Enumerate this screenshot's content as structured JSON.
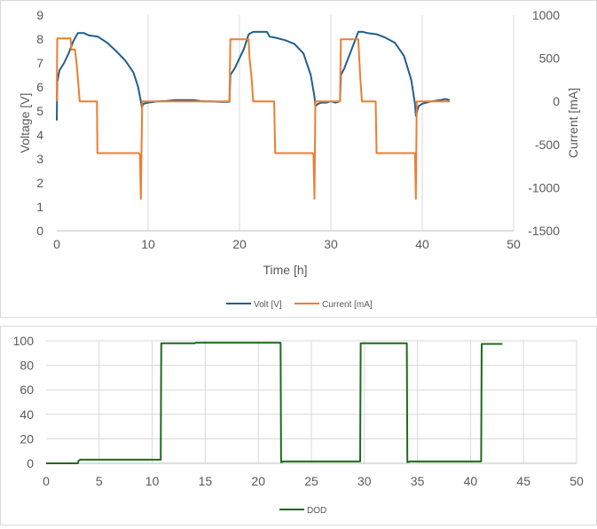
{
  "chart_data": [
    {
      "type": "line",
      "xlabel": "Time [h]",
      "ylabel": "Voltage [V]",
      "y2label": "Current [mA]",
      "xlim": [
        0,
        50
      ],
      "ylim": [
        0,
        9
      ],
      "y2lim": [
        -1500,
        1000
      ],
      "xticks": [
        "0",
        "10",
        "20",
        "30",
        "40",
        "50"
      ],
      "yticks": [
        "0",
        "1",
        "2",
        "3",
        "4",
        "5",
        "6",
        "7",
        "8",
        "9"
      ],
      "y2ticks": [
        "1000",
        "500",
        "0",
        "-500",
        "-1000",
        "-1500"
      ],
      "grid": "vertical",
      "legend": "bottom",
      "series": [
        {
          "name": "Volt [V]",
          "axis": "left",
          "color": "#1f5f8b",
          "points": [
            [
              0,
              4.6
            ],
            [
              0.05,
              6.2
            ],
            [
              0.3,
              6.7
            ],
            [
              0.8,
              7.0
            ],
            [
              1.3,
              7.4
            ],
            [
              1.8,
              7.9
            ],
            [
              2.3,
              8.25
            ],
            [
              3.0,
              8.25
            ],
            [
              3.5,
              8.15
            ],
            [
              4.5,
              8.1
            ],
            [
              5.5,
              7.85
            ],
            [
              6.5,
              7.5
            ],
            [
              7.5,
              7.1
            ],
            [
              8.4,
              6.6
            ],
            [
              8.9,
              6.0
            ],
            [
              9.2,
              5.4
            ],
            [
              9.3,
              5.15
            ],
            [
              9.5,
              5.3
            ],
            [
              10,
              5.35
            ],
            [
              11,
              5.4
            ],
            [
              12,
              5.42
            ],
            [
              13,
              5.45
            ],
            [
              14,
              5.45
            ],
            [
              15,
              5.45
            ],
            [
              16,
              5.4
            ],
            [
              17,
              5.4
            ],
            [
              18,
              5.38
            ],
            [
              18.9,
              5.38
            ],
            [
              19.0,
              6.5
            ],
            [
              19.5,
              6.8
            ],
            [
              20,
              7.2
            ],
            [
              20.5,
              7.6
            ],
            [
              21,
              8.2
            ],
            [
              21.5,
              8.3
            ],
            [
              22.5,
              8.3
            ],
            [
              23.0,
              8.3
            ],
            [
              23.3,
              8.1
            ],
            [
              24,
              8.05
            ],
            [
              25,
              7.95
            ],
            [
              26,
              7.8
            ],
            [
              27,
              7.4
            ],
            [
              27.8,
              6.5
            ],
            [
              28.2,
              5.6
            ],
            [
              28.3,
              5.2
            ],
            [
              28.6,
              5.3
            ],
            [
              29,
              5.35
            ],
            [
              29.5,
              5.35
            ],
            [
              30,
              5.4
            ],
            [
              30.5,
              5.35
            ],
            [
              31.0,
              5.4
            ],
            [
              31.1,
              6.5
            ],
            [
              31.5,
              6.8
            ],
            [
              32,
              7.3
            ],
            [
              32.5,
              7.8
            ],
            [
              33,
              8.3
            ],
            [
              33.5,
              8.3
            ],
            [
              34,
              8.25
            ],
            [
              35,
              8.2
            ],
            [
              36,
              8.05
            ],
            [
              37,
              7.85
            ],
            [
              38,
              7.3
            ],
            [
              38.8,
              6.3
            ],
            [
              39.2,
              5.3
            ],
            [
              39.3,
              4.8
            ],
            [
              39.6,
              5.2
            ],
            [
              40,
              5.3
            ],
            [
              41,
              5.4
            ],
            [
              42,
              5.45
            ],
            [
              42.5,
              5.5
            ],
            [
              43,
              5.45
            ]
          ]
        },
        {
          "name": "Current [mA]",
          "axis": "right",
          "color": "#ed7d31",
          "points": [
            [
              0,
              0
            ],
            [
              0.05,
              730
            ],
            [
              1.5,
              730
            ],
            [
              1.6,
              600
            ],
            [
              2.0,
              600
            ],
            [
              2.2,
              400
            ],
            [
              2.4,
              150
            ],
            [
              2.5,
              0
            ],
            [
              4.4,
              0
            ],
            [
              4.45,
              -600
            ],
            [
              9.0,
              -600
            ],
            [
              9.1,
              -620
            ],
            [
              9.2,
              -1130
            ],
            [
              9.35,
              0
            ],
            [
              18.9,
              0
            ],
            [
              19.0,
              720
            ],
            [
              21.0,
              720
            ],
            [
              21.1,
              500
            ],
            [
              21.3,
              300
            ],
            [
              21.5,
              0
            ],
            [
              23.8,
              0
            ],
            [
              23.9,
              -600
            ],
            [
              28.0,
              -600
            ],
            [
              28.1,
              -620
            ],
            [
              28.2,
              -1130
            ],
            [
              28.3,
              0
            ],
            [
              31.0,
              0
            ],
            [
              31.1,
              720
            ],
            [
              33.0,
              720
            ],
            [
              33.2,
              300
            ],
            [
              33.4,
              0
            ],
            [
              34.9,
              0
            ],
            [
              35.0,
              -600
            ],
            [
              39.2,
              -600
            ],
            [
              39.3,
              -1130
            ],
            [
              39.4,
              0
            ],
            [
              43,
              0
            ]
          ]
        }
      ]
    },
    {
      "type": "line",
      "xlim": [
        0,
        50
      ],
      "ylim": [
        0,
        100
      ],
      "xticks": [
        "0",
        "5",
        "10",
        "15",
        "20",
        "25",
        "30",
        "35",
        "40",
        "45",
        "50"
      ],
      "yticks": [
        "0",
        "20",
        "40",
        "60",
        "80",
        "100"
      ],
      "grid": "both",
      "legend": "bottom",
      "series": [
        {
          "name": "DOD",
          "color": "#1e6b1e",
          "points": [
            [
              0,
              0
            ],
            [
              3.0,
              0
            ],
            [
              3.05,
              2
            ],
            [
              3.2,
              3
            ],
            [
              10.8,
              3
            ],
            [
              10.85,
              98
            ],
            [
              14,
              98
            ],
            [
              14.1,
              98.5
            ],
            [
              22.1,
              98.5
            ],
            [
              22.15,
              1
            ],
            [
              22.4,
              1.5
            ],
            [
              29.6,
              1.5
            ],
            [
              29.65,
              98
            ],
            [
              34.0,
              98
            ],
            [
              34.05,
              1
            ],
            [
              34.3,
              1.5
            ],
            [
              41.0,
              1.5
            ],
            [
              41.05,
              97.5
            ],
            [
              43,
              97.5
            ]
          ]
        }
      ]
    }
  ]
}
